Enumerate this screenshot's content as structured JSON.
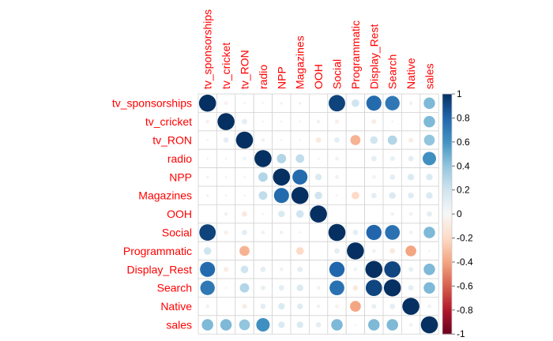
{
  "chart_data": {
    "type": "heatmap",
    "style": "corrplot-circle",
    "variables": [
      "tv_sponsorships",
      "tv_cricket",
      "tv_RON",
      "radio",
      "NPP",
      "Magazines",
      "OOH",
      "Social",
      "Programmatic",
      "Display_Rest",
      "Search",
      "Native",
      "sales"
    ],
    "matrix": [
      [
        1.0,
        -0.05,
        0.02,
        0.02,
        0.03,
        0.03,
        0.0,
        0.93,
        0.2,
        0.78,
        0.72,
        0.05,
        0.45
      ],
      [
        -0.05,
        1.0,
        0.1,
        0.02,
        0.02,
        0.02,
        0.05,
        -0.06,
        0.0,
        -0.08,
        0.02,
        0.0,
        0.45
      ],
      [
        0.02,
        0.1,
        1.0,
        0.05,
        0.02,
        0.02,
        -0.1,
        0.1,
        -0.35,
        0.2,
        0.3,
        -0.08,
        0.4
      ],
      [
        0.02,
        0.02,
        0.05,
        1.0,
        0.3,
        0.25,
        0.02,
        0.05,
        0.0,
        0.1,
        0.08,
        0.1,
        0.62
      ],
      [
        0.03,
        0.02,
        0.02,
        0.3,
        1.0,
        0.78,
        0.15,
        0.05,
        0.0,
        0.05,
        0.1,
        0.15,
        0.15
      ],
      [
        0.03,
        0.02,
        0.02,
        0.25,
        0.78,
        1.0,
        0.2,
        0.02,
        -0.2,
        0.1,
        0.15,
        0.12,
        0.15
      ],
      [
        0.0,
        0.05,
        -0.1,
        0.02,
        0.15,
        0.2,
        1.0,
        0.0,
        0.0,
        0.0,
        0.05,
        0.05,
        0.1
      ],
      [
        0.93,
        -0.06,
        0.1,
        0.05,
        0.05,
        0.02,
        0.0,
        1.0,
        0.1,
        0.8,
        0.75,
        -0.05,
        0.45
      ],
      [
        0.2,
        0.0,
        -0.35,
        0.0,
        0.0,
        -0.2,
        0.0,
        0.1,
        1.0,
        0.05,
        -0.1,
        -0.4,
        -0.02
      ],
      [
        0.78,
        -0.08,
        0.2,
        0.1,
        0.05,
        0.1,
        0.0,
        0.8,
        0.05,
        1.0,
        0.92,
        0.08,
        0.45
      ],
      [
        0.72,
        0.02,
        0.3,
        0.08,
        0.1,
        0.15,
        0.05,
        0.75,
        -0.1,
        0.92,
        1.0,
        0.1,
        0.45
      ],
      [
        0.05,
        0.0,
        -0.08,
        0.1,
        0.15,
        0.12,
        0.05,
        -0.05,
        -0.4,
        0.08,
        0.1,
        1.0,
        0.05
      ],
      [
        0.45,
        0.45,
        0.4,
        0.62,
        0.15,
        0.15,
        0.1,
        0.45,
        -0.02,
        0.45,
        0.45,
        0.05,
        1.0
      ]
    ],
    "colorbar": {
      "ticks": [
        "1",
        "0.8",
        "0.6",
        "0.4",
        "0.2",
        "0",
        "-0.2",
        "-0.4",
        "-0.6",
        "-0.8",
        "-1"
      ],
      "range": [
        -1,
        1
      ]
    },
    "colors": {
      "positive_max": "#053061",
      "negative_max": "#67001f",
      "neutral": "#f7f7f7",
      "label": "#ff0000",
      "grid": "#d3d3d3"
    }
  }
}
